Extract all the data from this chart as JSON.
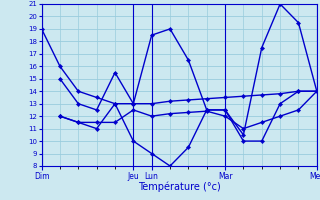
{
  "title": "Température (°c)",
  "background_color": "#cce8f0",
  "grid_color": "#99ccdd",
  "line_color": "#0000cc",
  "ylim": [
    8,
    21
  ],
  "yticks": [
    8,
    9,
    10,
    11,
    12,
    13,
    14,
    15,
    16,
    17,
    18,
    19,
    20,
    21
  ],
  "xlabel": "Température (°c)",
  "day_labels": [
    "Dim",
    "Jeu",
    "Lun",
    "Mar",
    "Mer"
  ],
  "day_x": [
    0,
    10,
    12,
    20,
    30
  ],
  "lines": [
    {
      "x": [
        0,
        2,
        4,
        6,
        8,
        10,
        12,
        14,
        16,
        18,
        20,
        22,
        24,
        26,
        28,
        30
      ],
      "y": [
        19.0,
        16.0,
        14.0,
        13.5,
        13.0,
        13.0,
        13.0,
        13.2,
        13.3,
        13.4,
        13.5,
        13.6,
        13.7,
        13.8,
        14.0,
        14.0
      ]
    },
    {
      "x": [
        2,
        4,
        6,
        8,
        10,
        12,
        14,
        16,
        18,
        20,
        22,
        24,
        26,
        28,
        30
      ],
      "y": [
        12.0,
        11.5,
        11.5,
        11.5,
        12.5,
        12.0,
        12.2,
        12.3,
        12.4,
        12.0,
        11.0,
        11.5,
        12.0,
        12.5,
        14.0
      ]
    },
    {
      "x": [
        2,
        4,
        6,
        8,
        10,
        12,
        14,
        16,
        18,
        20,
        22,
        24,
        26,
        28,
        30
      ],
      "y": [
        15.0,
        13.0,
        12.5,
        15.5,
        13.0,
        18.5,
        19.0,
        16.5,
        12.5,
        12.5,
        10.5,
        17.5,
        21.0,
        19.5,
        14.0
      ]
    },
    {
      "x": [
        2,
        4,
        6,
        8,
        10,
        12,
        14,
        16,
        18,
        20,
        22,
        24,
        26,
        28,
        30
      ],
      "y": [
        12.0,
        11.5,
        11.0,
        13.0,
        10.0,
        9.0,
        8.0,
        9.5,
        12.5,
        12.5,
        10.0,
        10.0,
        13.0,
        14.0,
        14.0
      ]
    }
  ]
}
